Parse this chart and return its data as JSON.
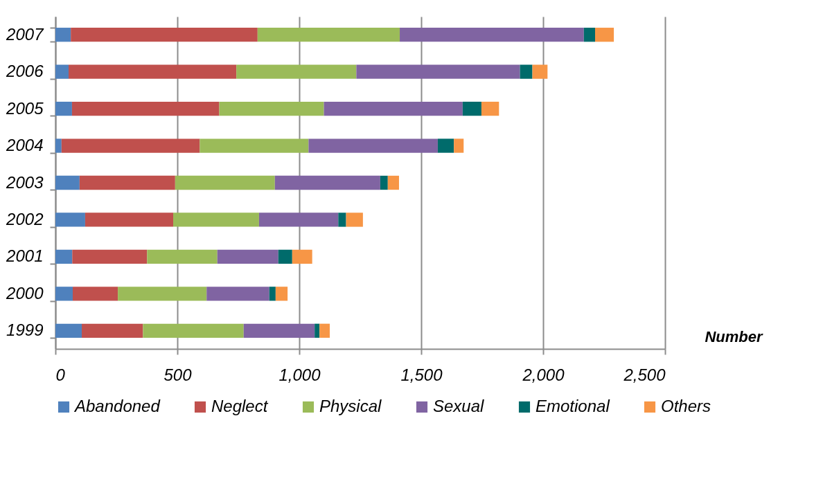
{
  "chart_data": {
    "type": "bar",
    "orientation": "horizontal",
    "stacked": true,
    "categories": [
      "2007",
      "2006",
      "2005",
      "2004",
      "2003",
      "2002",
      "2001",
      "2000",
      "1999"
    ],
    "series": [
      {
        "name": "Abandoned",
        "color": "#4f81bd",
        "values": [
          63,
          54,
          68,
          25,
          99,
          122,
          69,
          71,
          108
        ]
      },
      {
        "name": "Neglect",
        "color": "#c0504d",
        "values": [
          766,
          688,
          604,
          567,
          392,
          361,
          307,
          185,
          251
        ]
      },
      {
        "name": "Physical",
        "color": "#9bbb59",
        "values": [
          583,
          492,
          429,
          446,
          409,
          352,
          288,
          364,
          413
        ]
      },
      {
        "name": "Sexual",
        "color": "#8064a2",
        "values": [
          755,
          671,
          569,
          530,
          432,
          325,
          250,
          257,
          291
        ]
      },
      {
        "name": "Emotional",
        "color": "#006b6b",
        "values": [
          46,
          51,
          77,
          66,
          31,
          32,
          57,
          26,
          20
        ]
      },
      {
        "name": "Others",
        "color": "#f79646",
        "values": [
          77,
          62,
          72,
          40,
          46,
          69,
          82,
          49,
          42
        ]
      }
    ],
    "xlabel": "Number",
    "xlim": [
      0,
      2500
    ],
    "xticks": [
      {
        "value": 0,
        "label": "0"
      },
      {
        "value": 500,
        "label": "500"
      },
      {
        "value": 1000,
        "label": "1,000"
      },
      {
        "value": 1500,
        "label": "1,500"
      },
      {
        "value": 2000,
        "label": "2,000"
      },
      {
        "value": 2500,
        "label": "2,500"
      }
    ],
    "grid": "x",
    "legend": "bottom"
  }
}
